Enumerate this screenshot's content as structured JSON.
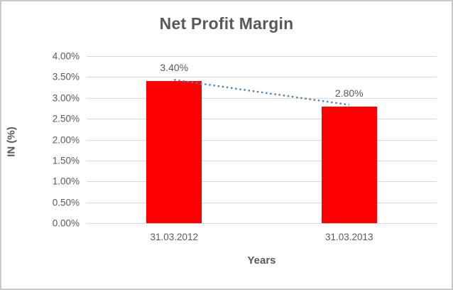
{
  "chart_data": {
    "type": "bar",
    "title": "Net Profit Margin",
    "xlabel": "Years",
    "ylabel": "IN (%)",
    "categories": [
      "31.03.2012",
      "31.03.2013"
    ],
    "values": [
      3.4,
      2.8
    ],
    "data_labels": [
      "3.40%",
      "2.80%"
    ],
    "ylim": [
      0,
      4
    ],
    "yticks_top_to_bottom": [
      "4.00%",
      "3.50%",
      "3.00%",
      "2.50%",
      "2.00%",
      "1.50%",
      "1.00%",
      "0.50%",
      "0.00%"
    ],
    "grid": "horizontal",
    "legend_position": "none",
    "trendline": {
      "type": "linear",
      "style": "dotted",
      "from_value": 3.4,
      "to_value": 2.8
    }
  },
  "colors": {
    "bar_fill": "#FF0000",
    "trendline_stroke": "#4A7EBD",
    "gridline": "#D9D9D9",
    "axis_line": "#D9D9D9",
    "text": "#595959",
    "frame_border": "#C9C9C9"
  }
}
